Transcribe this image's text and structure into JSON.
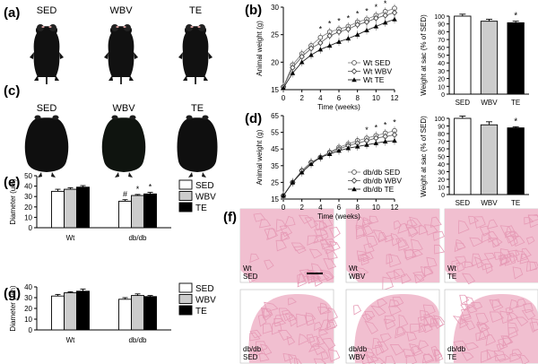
{
  "panels": {
    "a": {
      "label": "(a)",
      "groups": [
        "SED",
        "WBV",
        "TE"
      ]
    },
    "c": {
      "label": "(c)",
      "groups": [
        "SED",
        "WBV",
        "TE"
      ]
    },
    "f": {
      "label": "(f)",
      "tiles": [
        {
          "line1": "Wt",
          "line2": "SED"
        },
        {
          "line1": "Wt",
          "line2": "WBV"
        },
        {
          "line1": "Wt",
          "line2": "TE"
        },
        {
          "line1": "db/db",
          "line2": "SED"
        },
        {
          "line1": "db/db",
          "line2": "WBV"
        },
        {
          "line1": "db/db",
          "line2": "TE"
        }
      ]
    }
  },
  "colors": {
    "sed": "#ffffff",
    "wbv": "#cccccc",
    "te": "#000000",
    "tissue": "#f1bfd0",
    "fiber": "#e69bb6",
    "mouse": "#0f0f0f"
  },
  "chart_data": [
    {
      "id": "b-line",
      "panel_label": "(b)",
      "type": "line",
      "xlabel": "Time (weeks)",
      "ylabel": "Animal weight (g)",
      "xlim": [
        0,
        12
      ],
      "ylim": [
        15,
        30
      ],
      "xticks": [
        0,
        2,
        4,
        6,
        8,
        10,
        12
      ],
      "yticks": [
        15,
        20,
        25,
        30
      ],
      "x": [
        0,
        1,
        2,
        3,
        4,
        5,
        6,
        7,
        8,
        9,
        10,
        11,
        12
      ],
      "series": [
        {
          "name": "Wt SED",
          "marker": "circle-open",
          "values": [
            15.5,
            19.5,
            21.5,
            23.0,
            24.5,
            25.5,
            26.0,
            26.5,
            27.3,
            27.8,
            28.5,
            29.2,
            29.8
          ]
        },
        {
          "name": "Wt WBV",
          "marker": "diamond-open",
          "values": [
            15.5,
            19.0,
            21.0,
            22.5,
            23.5,
            24.8,
            25.5,
            26.0,
            26.8,
            27.3,
            28.0,
            28.5,
            29.0
          ]
        },
        {
          "name": "Wt TE",
          "marker": "triangle-filled",
          "values": [
            15.3,
            18.0,
            20.0,
            21.3,
            22.3,
            23.0,
            23.7,
            24.3,
            25.0,
            25.8,
            26.5,
            27.2,
            27.8
          ]
        }
      ],
      "stars_at": [
        4,
        5,
        6,
        7,
        8,
        9,
        10,
        11,
        12
      ],
      "legend": "bottom-right"
    },
    {
      "id": "b-bar",
      "type": "bar",
      "categories": [
        "SED",
        "WBV",
        "TE"
      ],
      "values": [
        100,
        93.5,
        91.5
      ],
      "errors": [
        2.5,
        2.5,
        2.0
      ],
      "ylabel": "Weight at sac (% of SED)",
      "ylim": [
        0,
        100
      ],
      "yticks": [
        0,
        10,
        20,
        30,
        40,
        50,
        60,
        70,
        80,
        90,
        100
      ],
      "stars": [
        "",
        "",
        "*"
      ]
    },
    {
      "id": "d-line",
      "panel_label": "(d)",
      "type": "line",
      "xlabel": "Time (weeks)",
      "ylabel": "Animal weight (g)",
      "xlim": [
        0,
        12
      ],
      "ylim": [
        15,
        65
      ],
      "xticks": [
        0,
        2,
        4,
        6,
        8,
        10,
        12
      ],
      "yticks": [
        15,
        25,
        35,
        45,
        55,
        65
      ],
      "x": [
        0,
        1,
        2,
        3,
        4,
        5,
        6,
        7,
        8,
        9,
        10,
        11,
        12
      ],
      "series": [
        {
          "name": "db/db SED",
          "marker": "circle-open",
          "values": [
            17,
            25,
            32,
            37,
            40,
            43,
            46,
            48,
            50,
            51.5,
            53,
            54.5,
            56
          ]
        },
        {
          "name": "db/db WBV",
          "marker": "diamond-open",
          "values": [
            17,
            25,
            32,
            37,
            40,
            43,
            45,
            47,
            48.5,
            50,
            51.5,
            52.5,
            53.5
          ]
        },
        {
          "name": "db/db TE",
          "marker": "triangle-filled",
          "values": [
            17,
            25,
            31,
            36,
            40,
            42,
            44,
            45.5,
            46.5,
            47.5,
            48.5,
            49.5,
            50
          ]
        }
      ],
      "stars_at": [
        9,
        10,
        11,
        12
      ],
      "legend": "bottom-right"
    },
    {
      "id": "d-bar",
      "type": "bar",
      "categories": [
        "SED",
        "WBV",
        "TE"
      ],
      "values": [
        100,
        91.5,
        87.5
      ],
      "errors": [
        3.0,
        4.0,
        1.5
      ],
      "ylabel": "Weight at sac (% of SED)",
      "ylim": [
        0,
        100
      ],
      "yticks": [
        0,
        10,
        20,
        30,
        40,
        50,
        60,
        70,
        80,
        90,
        100
      ],
      "stars": [
        "",
        "",
        "*"
      ]
    },
    {
      "id": "e",
      "panel_label": "(e)",
      "type": "bar",
      "categories": [
        "Wt",
        "db/db"
      ],
      "series": [
        {
          "name": "SED",
          "values": [
            35,
            25.5
          ],
          "errors": [
            2.0,
            1.5
          ],
          "marks": [
            "",
            "#"
          ]
        },
        {
          "name": "WBV",
          "values": [
            37,
            31
          ],
          "errors": [
            1.5,
            1.0
          ],
          "marks": [
            "",
            "*"
          ]
        },
        {
          "name": "TE",
          "values": [
            39,
            32.5
          ],
          "errors": [
            1.5,
            1.5
          ],
          "marks": [
            "",
            "*"
          ]
        }
      ],
      "ylabel": "Diameter (um)",
      "ylim": [
        0,
        50
      ],
      "yticks": [
        0,
        10,
        20,
        30,
        40,
        50
      ],
      "legend": "right"
    },
    {
      "id": "g",
      "panel_label": "(g)",
      "type": "bar",
      "categories": [
        "Wt",
        "db/db"
      ],
      "series": [
        {
          "name": "SED",
          "values": [
            31.5,
            28.5
          ],
          "errors": [
            1.5,
            1.5
          ]
        },
        {
          "name": "WBV",
          "values": [
            34.5,
            32
          ],
          "errors": [
            1.0,
            1.5
          ]
        },
        {
          "name": "TE",
          "values": [
            36,
            31
          ],
          "errors": [
            2.0,
            1.0
          ]
        }
      ],
      "ylabel": "Diameter (um)",
      "ylim": [
        0,
        40
      ],
      "yticks": [
        0,
        10,
        20,
        30,
        40
      ],
      "legend": "right"
    }
  ]
}
